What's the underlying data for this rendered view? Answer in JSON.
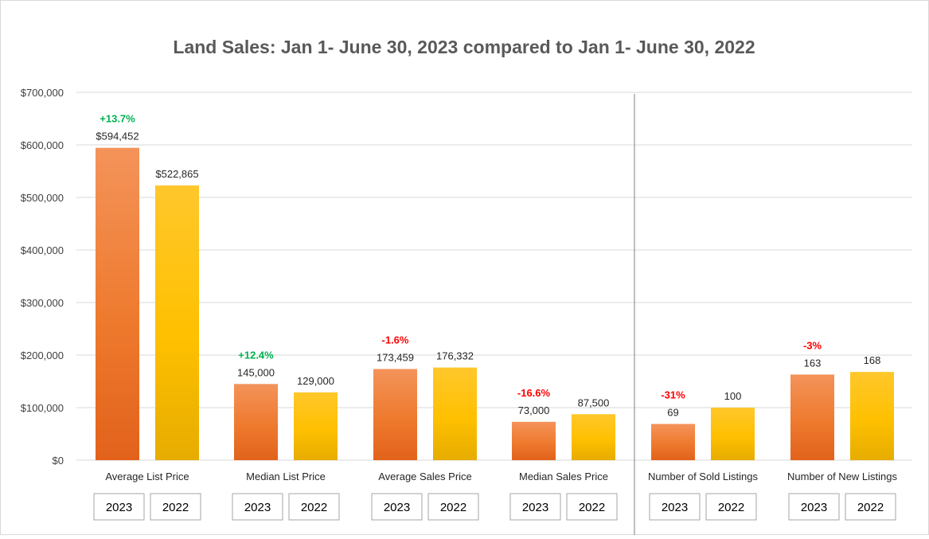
{
  "chart_data": {
    "type": "bar",
    "title": "Land Sales: Jan 1- June 30, 2023 compared to Jan 1- June 30, 2022",
    "xlabel": "",
    "ylabel": "",
    "ylim": [
      0,
      700000
    ],
    "y_ticks": [
      0,
      100000,
      200000,
      300000,
      400000,
      500000,
      600000,
      700000
    ],
    "y_tick_labels": [
      "$0",
      "$100,000",
      "$200,000",
      "$300,000",
      "$400,000",
      "$500,000",
      "$600,000",
      "$700,000"
    ],
    "grid": true,
    "legend": "none",
    "categories": [
      "Average List Price",
      "Median List Price",
      "Average Sales Price",
      "Median Sales Price",
      "Number of Sold Listings",
      "Number of New Listings"
    ],
    "series": [
      {
        "name": "2023",
        "values": [
          594452,
          145000,
          173459,
          73000,
          69,
          163
        ]
      },
      {
        "name": "2022",
        "values": [
          522865,
          129000,
          176332,
          87500,
          100,
          168
        ]
      }
    ],
    "value_labels": [
      [
        "$594,452",
        "145,000",
        "173,459",
        "73,000",
        "69",
        "163"
      ],
      [
        "$522,865",
        "129,000",
        "176,332",
        "87,500",
        "100",
        "168"
      ]
    ],
    "changes": [
      "+13.7%",
      "+12.4%",
      "-1.6%",
      "-16.6%",
      "-31%",
      "-3%"
    ],
    "change_colors": [
      "#00b050",
      "#00b050",
      "#ff0000",
      "#ff0000",
      "#ff0000",
      "#ff0000"
    ],
    "note": "Count categories (Sold/New Listings) are drawn against a separate implicit scale; bars are rendered at their visual heights on the shared grid.",
    "count_category_visual_values": [
      69000,
      100000,
      163000,
      168000
    ],
    "colors": {
      "bar_2023_top": "#f4935a",
      "bar_2023_bottom": "#e2621b",
      "bar_2022_top": "#ffc72c",
      "bar_2022_bottom": "#e6ac00",
      "positive_change": "#00b050",
      "negative_change": "#ff0000",
      "gridline": "#d9d9d9",
      "title": "#595959"
    }
  }
}
